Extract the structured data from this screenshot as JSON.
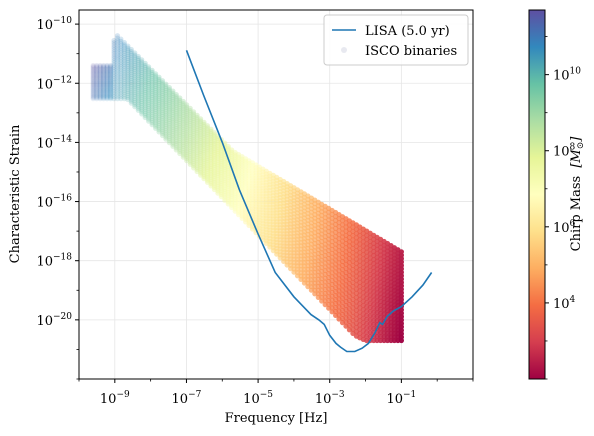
{
  "chart_data": {
    "type": "scatter",
    "xlabel": "Frequency [Hz]",
    "ylabel": "Characteristic Strain",
    "x_scale": "log",
    "y_scale": "log",
    "xlim": [
      1e-10,
      10.0
    ],
    "ylim": [
      1e-22,
      3e-10
    ],
    "x_ticks": [
      {
        "base": "10",
        "exp": "−9",
        "value": 1e-09
      },
      {
        "base": "10",
        "exp": "−7",
        "value": 1e-07
      },
      {
        "base": "10",
        "exp": "−5",
        "value": 1e-05
      },
      {
        "base": "10",
        "exp": "−3",
        "value": 0.001
      },
      {
        "base": "10",
        "exp": "−1",
        "value": 0.1
      }
    ],
    "y_ticks": [
      {
        "base": "10",
        "exp": "−10",
        "value": 1e-10
      },
      {
        "base": "10",
        "exp": "−12",
        "value": 1e-12
      },
      {
        "base": "10",
        "exp": "−14",
        "value": 1e-14
      },
      {
        "base": "10",
        "exp": "−16",
        "value": 1e-16
      },
      {
        "base": "10",
        "exp": "−18",
        "value": 1e-18
      },
      {
        "base": "10",
        "exp": "−20",
        "value": 1e-20
      }
    ],
    "grid": true,
    "legend_position": "top-right",
    "series": [
      {
        "name": "LISA (5.0 yr)",
        "kind": "line",
        "color": "#1f77b4",
        "x": [
          1e-07,
          3e-07,
          1e-06,
          3e-06,
          1e-05,
          3e-05,
          0.0001,
          0.0002,
          0.0003,
          0.0005,
          0.0007,
          0.001,
          0.0015,
          0.002,
          0.003,
          0.005,
          0.008,
          0.012,
          0.018,
          0.025,
          0.03,
          0.04,
          0.06,
          0.1,
          0.2,
          0.4,
          0.7
        ],
        "y": [
          1.3e-11,
          4e-13,
          1e-14,
          2.5e-16,
          8e-18,
          4e-19,
          6e-20,
          2.5e-20,
          1.5e-20,
          1e-20,
          7e-21,
          3e-21,
          1.6e-21,
          1.2e-21,
          8.5e-22,
          8.5e-22,
          1.1e-21,
          1.6e-21,
          3.5e-21,
          8e-21,
          7e-21,
          1.3e-20,
          2e-20,
          2.8e-20,
          6e-20,
          1.5e-19,
          4e-19
        ]
      },
      {
        "name": "ISCO binaries",
        "kind": "scatter",
        "color_by": "Chirp Mass",
        "upper_edge": {
          "x": [
            2e-10,
            8e-10,
            1e-09,
            2e-06,
            0.1
          ],
          "y": [
            4e-12,
            4e-12,
            5e-11,
            5e-15,
            2e-18
          ]
        },
        "lower_edge": {
          "x": [
            2e-10,
            2.2e-09,
            0.005,
            0.01,
            0.1
          ],
          "y": [
            3e-13,
            3e-13,
            3e-21,
            2e-21,
            2e-21
          ]
        }
      }
    ],
    "colorbar": {
      "label": "Chirp Mass [M_⊙]",
      "label_text": "Chirp Mass",
      "label_unit": "[M",
      "label_sub": "⊙",
      "label_close": "]",
      "scale": "log",
      "range": [
        100,
        500000000000.0
      ],
      "colormap": "Spectral",
      "ticks": [
        {
          "base": "10",
          "exp": "10",
          "value": 10000000000.0
        },
        {
          "base": "10",
          "exp": "8",
          "value": 100000000.0
        },
        {
          "base": "10",
          "exp": "6",
          "value": 1000000.0
        },
        {
          "base": "10",
          "exp": "4",
          "value": 10000.0
        }
      ]
    }
  }
}
